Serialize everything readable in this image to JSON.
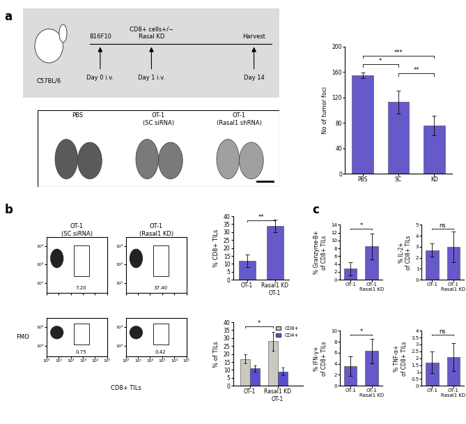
{
  "panel_labels": [
    "a",
    "b",
    "c"
  ],
  "schematic": {
    "strain": "C57BL/6",
    "events": [
      {
        "label": "B16F10",
        "day": "Day 0 i.v."
      },
      {
        "label": "CD8+ cells+/−\nRasal KD",
        "day": "Day 1 i.v."
      },
      {
        "label": "Harvest",
        "day": "Day 14"
      }
    ]
  },
  "lung_images": {
    "labels": [
      "PBS",
      "OT-1\n(SC siRNA)",
      "OT-1\n(Rasal1 shRNA)"
    ]
  },
  "flow_plots": {
    "columns": [
      "OT-1\n(SC siRNA)",
      "OT-1\n(Rasal1 KD)"
    ],
    "xlabel": "CD8+ TILs",
    "xlim": [
      1,
      100000
    ],
    "xticks": [
      {
        "value": 1,
        "label": "10⁰"
      },
      {
        "value": 10,
        "label": "10¹"
      },
      {
        "value": 100,
        "label": "10²"
      },
      {
        "value": 1000,
        "label": "10³"
      },
      {
        "value": 10000,
        "label": "10⁴"
      },
      {
        "value": 100000,
        "label": "10⁵"
      }
    ],
    "rows": [
      {
        "tick_labels": "y",
        "ylim": [
          3,
          3000
        ],
        "yticks": [
          {
            "value": 10,
            "label": "10¹"
          },
          {
            "value": 100,
            "label": "10²"
          },
          {
            "value": 1000,
            "label": "10³"
          }
        ],
        "gate_values": [
          "7.20",
          "37.40"
        ]
      },
      {
        "label": "FMO",
        "ylim": [
          30,
          3000
        ],
        "yticks": [
          {
            "value": 100,
            "label": "10²"
          },
          {
            "value": 1000,
            "label": "10³"
          }
        ],
        "gate_values": [
          "0.75",
          "0.42"
        ]
      }
    ]
  },
  "chart_data": [
    {
      "type": "bar",
      "categories": [
        "PBS",
        "SC",
        "KD"
      ],
      "values": [
        155,
        113,
        76
      ],
      "errors": [
        4,
        18,
        15
      ],
      "color": "#6659c9",
      "ylabel": "No of tumor foci",
      "ylim": [
        0,
        200
      ],
      "yticks": [
        0,
        40,
        80,
        120,
        160,
        200
      ],
      "significance": [
        {
          "from": 1,
          "to": 2,
          "label": "**"
        },
        {
          "from": 0,
          "to": 1,
          "label": "*"
        },
        {
          "from": 0,
          "to": 2,
          "label": "***"
        }
      ]
    },
    {
      "type": "bar",
      "categories": [
        "OT-1",
        "Rasal1 KD\nOT-1"
      ],
      "values": [
        12,
        34
      ],
      "errors": [
        4,
        4
      ],
      "color": "#6659c9",
      "ylabel": "% CD8+ TILs",
      "ylim": [
        0,
        40
      ],
      "yticks": [
        0,
        5,
        10,
        15,
        20,
        25,
        30,
        35,
        40
      ],
      "significance": [
        {
          "from": 0,
          "to": 1,
          "label": "**"
        }
      ]
    },
    {
      "type": "bar",
      "categories": [
        "OT-1",
        "Rasal1 KD\nOT-1"
      ],
      "series": [
        {
          "name": "CD8+",
          "color": "#c9c9bf",
          "values": [
            17,
            28
          ],
          "errors": [
            3,
            6
          ]
        },
        {
          "name": "CD4+",
          "color": "#5a4fcf",
          "values": [
            11,
            9
          ],
          "errors": [
            2,
            2.5
          ]
        }
      ],
      "ylabel": "% of TILs",
      "ylim": [
        0,
        40
      ],
      "yticks": [
        0,
        5,
        10,
        15,
        20,
        25,
        30,
        35,
        40
      ],
      "legend": "upper right",
      "significance": [
        {
          "from": 0,
          "to": 1,
          "label": "*"
        }
      ]
    },
    {
      "type": "bar",
      "categories": [
        "OT-1",
        "OT-1\nRasal1 KD"
      ],
      "values": [
        2.8,
        8.5
      ],
      "errors": [
        1.7,
        3.3
      ],
      "color": "#6659c9",
      "ylabel": "% Granzyme-B+\nof CD8+ TILs",
      "ylim": [
        0,
        14
      ],
      "yticks": [
        0,
        2,
        4,
        6,
        8,
        10,
        12,
        14
      ],
      "significance": [
        {
          "from": 0,
          "to": 1,
          "label": "*"
        }
      ]
    },
    {
      "type": "bar",
      "categories": [
        "OT-1",
        "OT-1\nRasal1 KD"
      ],
      "values": [
        2.7,
        3.0
      ],
      "errors": [
        0.6,
        1.4
      ],
      "color": "#6659c9",
      "ylabel": "% IL-2+\nof CD8+ TILs",
      "ylim": [
        0,
        5
      ],
      "yticks": [
        0,
        1,
        2,
        3,
        4,
        5
      ],
      "significance": [
        {
          "from": 0,
          "to": 1,
          "label": "ns"
        }
      ]
    },
    {
      "type": "bar",
      "categories": [
        "OT-1",
        "OT-1\nRasal1 KD"
      ],
      "values": [
        3.6,
        6.3
      ],
      "errors": [
        1.8,
        2.2
      ],
      "color": "#6659c9",
      "ylabel": "% IFN-γ+\nof CD8+ TILs",
      "ylim": [
        0,
        10
      ],
      "yticks": [
        0,
        2,
        4,
        6,
        8,
        10
      ],
      "significance": [
        {
          "from": 0,
          "to": 1,
          "label": "*"
        }
      ]
    },
    {
      "type": "bar",
      "categories": [
        "OT-1",
        "OT-1\nRasal1 KD"
      ],
      "values": [
        1.7,
        2.1
      ],
      "errors": [
        0.8,
        1.0
      ],
      "color": "#6659c9",
      "ylabel": "% TNF-α+\nof CD8+ TILs",
      "ylim": [
        0,
        4
      ],
      "yticks": [
        0,
        0.5,
        1,
        1.5,
        2,
        2.5,
        3,
        3.5,
        4
      ],
      "significance": [
        {
          "from": 0,
          "to": 1,
          "label": "ns"
        }
      ]
    }
  ]
}
